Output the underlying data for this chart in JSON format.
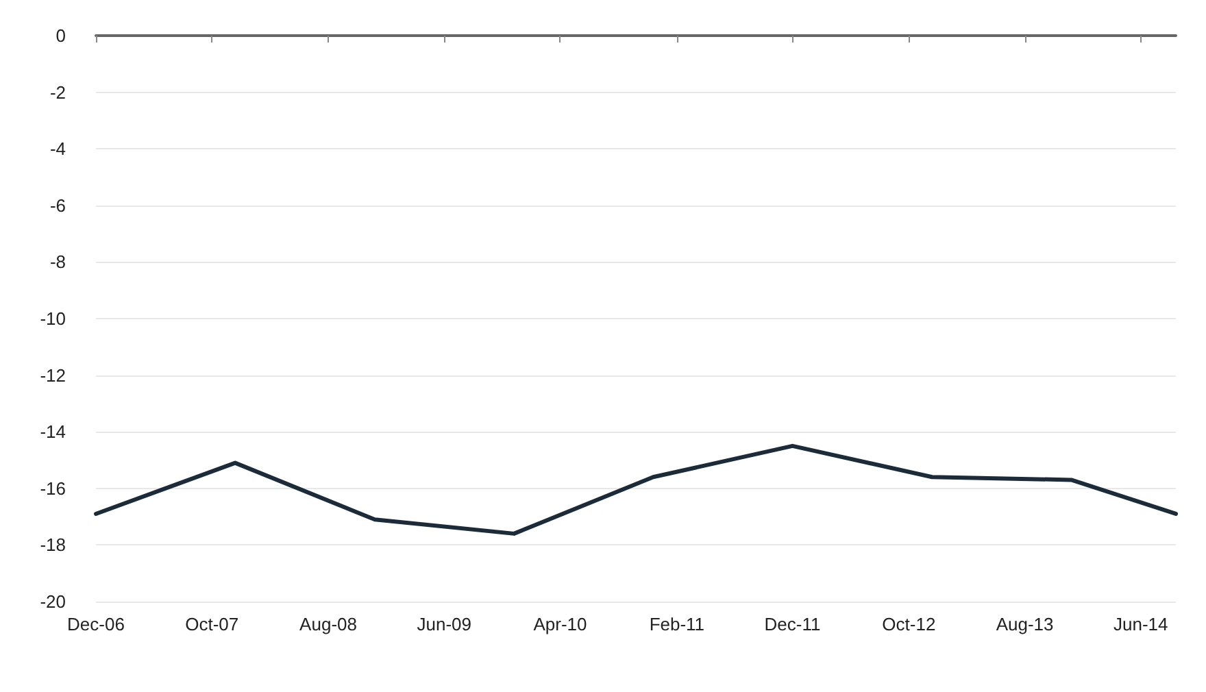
{
  "chart_data": {
    "type": "line",
    "x": [
      "2006-12",
      "2007-12",
      "2008-12",
      "2009-12",
      "2010-12",
      "2011-12",
      "2012-12",
      "2013-12",
      "2014-09"
    ],
    "series": [
      {
        "color": "#1c2b3a",
        "values": [
          -16.9,
          -15.1,
          -17.1,
          -17.6,
          -15.6,
          -14.5,
          -15.6,
          -15.7,
          -16.9
        ]
      }
    ],
    "xlim": [
      "2006-12",
      "2014-09"
    ],
    "xticks": [
      {
        "value": "2006-12",
        "label": "Dec-06"
      },
      {
        "value": "2007-10",
        "label": "Oct-07"
      },
      {
        "value": "2008-08",
        "label": "Aug-08"
      },
      {
        "value": "2009-06",
        "label": "Jun-09"
      },
      {
        "value": "2010-04",
        "label": "Apr-10"
      },
      {
        "value": "2011-02",
        "label": "Feb-11"
      },
      {
        "value": "2011-12",
        "label": "Dec-11"
      },
      {
        "value": "2012-10",
        "label": "Oct-12"
      },
      {
        "value": "2013-08",
        "label": "Aug-13"
      },
      {
        "value": "2014-06",
        "label": "Jun-14"
      }
    ],
    "ylim": [
      -20,
      0
    ],
    "yticks": [
      0,
      -2,
      -4,
      -6,
      -8,
      -10,
      -12,
      -14,
      -16,
      -18,
      -20
    ],
    "grid": "y",
    "marker": "none",
    "line_style": "solid"
  }
}
